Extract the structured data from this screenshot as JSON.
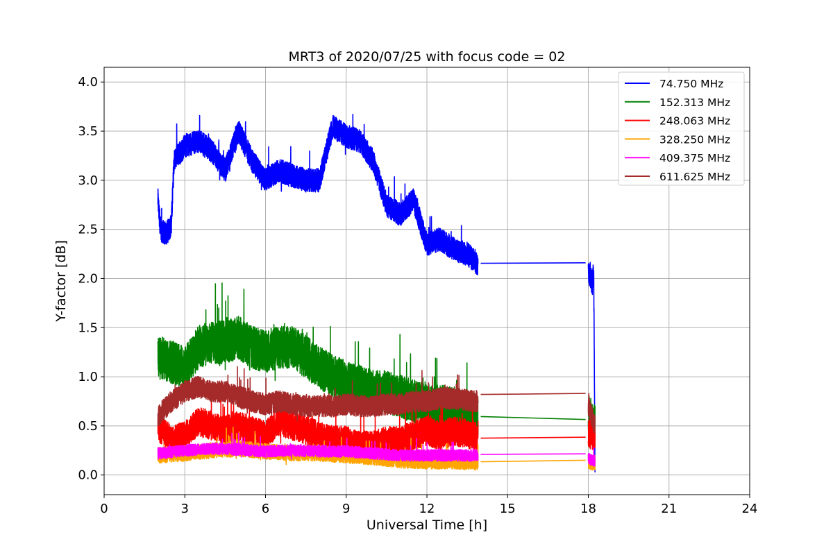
{
  "chart_data": {
    "type": "line",
    "title": "MRT3 of 2020/07/25 with focus code = 02",
    "xlabel": "Universal Time [h]",
    "ylabel": "Y-factor [dB]",
    "xlim": [
      0,
      24
    ],
    "ylim": [
      -0.2,
      4.15
    ],
    "xticks": [
      0,
      3,
      6,
      9,
      12,
      15,
      18,
      21,
      24
    ],
    "xtick_labels": [
      "0",
      "3",
      "6",
      "9",
      "12",
      "15",
      "18",
      "21",
      "24"
    ],
    "yticks": [
      0.0,
      0.5,
      1.0,
      1.5,
      2.0,
      2.5,
      3.0,
      3.5,
      4.0
    ],
    "ytick_labels": [
      "0.0",
      "0.5",
      "1.0",
      "1.5",
      "2.0",
      "2.5",
      "3.0",
      "3.5",
      "4.0"
    ],
    "grid": true,
    "legend_position": "top-right",
    "series": [
      {
        "name": " 74.750 MHz",
        "color": "#0000ff",
        "segments": [
          {
            "x": [
              2.0,
              2.1,
              2.3,
              2.5,
              2.6,
              3.0,
              3.5,
              4.0,
              4.5,
              5.0,
              5.5,
              6.0,
              6.5,
              7.0,
              7.5,
              8.0,
              8.5,
              9.0,
              9.5,
              10.0,
              10.5,
              11.0,
              11.5,
              12.0,
              12.5,
              13.0,
              13.5,
              13.9
            ],
            "y": [
              2.8,
              2.5,
              2.45,
              2.55,
              3.2,
              3.35,
              3.4,
              3.3,
              3.1,
              3.5,
              3.2,
              3.0,
              3.1,
              3.05,
              3.0,
              3.0,
              3.55,
              3.45,
              3.4,
              3.2,
              2.75,
              2.65,
              2.8,
              2.35,
              2.4,
              2.3,
              2.25,
              2.15
            ]
          },
          {
            "x": [
              14.0,
              17.9
            ],
            "y": [
              2.155,
              2.16
            ]
          },
          {
            "x": [
              18.0,
              18.1,
              18.15,
              18.2,
              18.25
            ],
            "y": [
              2.05,
              2.0,
              1.95,
              2.1,
              0.0
            ]
          }
        ],
        "noise": 0.12
      },
      {
        "name": "152.313 MHz",
        "color": "#008000",
        "segments": [
          {
            "x": [
              2.0,
              2.5,
              3.0,
              3.5,
              4.0,
              4.5,
              5.0,
              5.5,
              6.0,
              6.5,
              7.0,
              7.5,
              8.0,
              8.5,
              9.0,
              9.5,
              10.0,
              10.5,
              11.0,
              11.5,
              12.0,
              12.5,
              13.0,
              13.5,
              13.9
            ],
            "y": [
              1.2,
              1.15,
              1.1,
              1.3,
              1.35,
              1.35,
              1.4,
              1.3,
              1.25,
              1.3,
              1.3,
              1.2,
              1.1,
              1.0,
              0.95,
              0.9,
              0.85,
              0.85,
              0.8,
              0.75,
              0.7,
              0.7,
              0.68,
              0.65,
              0.6
            ]
          },
          {
            "x": [
              14.0,
              17.9
            ],
            "y": [
              0.595,
              0.565
            ]
          },
          {
            "x": [
              18.0,
              18.25
            ],
            "y": [
              0.6,
              0.5
            ]
          }
        ],
        "noise": 0.22
      },
      {
        "name": "248.063 MHz",
        "color": "#ff0000",
        "segments": [
          {
            "x": [
              2.0,
              2.5,
              3.0,
              3.5,
              4.0,
              4.5,
              5.0,
              5.5,
              6.0,
              6.5,
              7.0,
              7.5,
              8.0,
              8.5,
              9.0,
              9.5,
              10.0,
              10.5,
              11.0,
              11.5,
              12.0,
              12.5,
              13.0,
              13.5,
              13.9
            ],
            "y": [
              0.5,
              0.35,
              0.4,
              0.55,
              0.5,
              0.45,
              0.5,
              0.45,
              0.4,
              0.55,
              0.5,
              0.45,
              0.4,
              0.35,
              0.35,
              0.3,
              0.3,
              0.35,
              0.35,
              0.4,
              0.45,
              0.4,
              0.45,
              0.42,
              0.4
            ]
          },
          {
            "x": [
              14.0,
              17.9
            ],
            "y": [
              0.375,
              0.385
            ]
          },
          {
            "x": [
              18.0,
              18.25
            ],
            "y": [
              0.42,
              0.4
            ]
          }
        ],
        "noise": 0.15
      },
      {
        "name": "328.250 MHz",
        "color": "#ffa500",
        "segments": [
          {
            "x": [
              2.0,
              3.0,
              4.0,
              5.0,
              6.0,
              7.0,
              8.0,
              9.0,
              10.0,
              11.0,
              12.0,
              13.0,
              13.9
            ],
            "y": [
              0.2,
              0.22,
              0.25,
              0.27,
              0.24,
              0.22,
              0.22,
              0.2,
              0.18,
              0.15,
              0.14,
              0.14,
              0.13
            ]
          },
          {
            "x": [
              14.0,
              17.9
            ],
            "y": [
              0.135,
              0.15
            ]
          },
          {
            "x": [
              18.0,
              18.25
            ],
            "y": [
              0.14,
              0.12
            ]
          }
        ],
        "noise": 0.08
      },
      {
        "name": "409.375 MHz",
        "color": "#ff00ff",
        "segments": [
          {
            "x": [
              2.0,
              3.0,
              4.0,
              5.0,
              6.0,
              7.0,
              8.0,
              9.0,
              10.0,
              11.0,
              12.0,
              13.0,
              13.9
            ],
            "y": [
              0.22,
              0.25,
              0.27,
              0.26,
              0.24,
              0.25,
              0.24,
              0.24,
              0.22,
              0.2,
              0.2,
              0.2,
              0.2
            ]
          },
          {
            "x": [
              14.0,
              17.9
            ],
            "y": [
              0.21,
              0.215
            ]
          },
          {
            "x": [
              18.0,
              18.25
            ],
            "y": [
              0.17,
              0.14
            ]
          }
        ],
        "noise": 0.06
      },
      {
        "name": "611.625 MHz",
        "color": "#a52a2a",
        "segments": [
          {
            "x": [
              2.0,
              2.5,
              3.0,
              3.5,
              4.0,
              4.5,
              5.0,
              5.5,
              6.0,
              6.5,
              7.0,
              7.5,
              8.0,
              8.5,
              9.0,
              9.5,
              10.0,
              10.5,
              11.0,
              11.5,
              12.0,
              12.5,
              13.0,
              13.5,
              13.9
            ],
            "y": [
              0.6,
              0.75,
              0.85,
              0.9,
              0.85,
              0.85,
              0.8,
              0.75,
              0.72,
              0.75,
              0.72,
              0.7,
              0.7,
              0.7,
              0.72,
              0.7,
              0.7,
              0.72,
              0.72,
              0.75,
              0.75,
              0.78,
              0.78,
              0.76,
              0.75
            ]
          },
          {
            "x": [
              14.0,
              17.9
            ],
            "y": [
              0.82,
              0.83
            ]
          },
          {
            "x": [
              18.0,
              18.25
            ],
            "y": [
              0.7,
              0.5
            ]
          }
        ],
        "noise": 0.11
      }
    ]
  }
}
